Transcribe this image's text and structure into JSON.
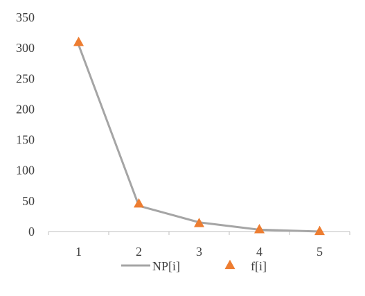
{
  "chart_data": {
    "type": "line",
    "x": [
      1,
      2,
      3,
      4,
      5
    ],
    "ylim": [
      0,
      350
    ],
    "yticks": [
      0,
      50,
      100,
      150,
      200,
      250,
      300,
      350
    ],
    "xticks": [
      "1",
      "2",
      "3",
      "4",
      "5"
    ],
    "grid": false,
    "legend_position": "bottom",
    "series": [
      {
        "name": "NP[i]",
        "style": "line",
        "color": "#a5a5a5",
        "values": [
          305,
          42,
          15,
          3,
          0
        ]
      },
      {
        "name": "f[i]",
        "style": "triangle-markers",
        "color": "#ed7d31",
        "values": [
          309,
          45,
          13,
          3,
          0
        ]
      }
    ]
  }
}
